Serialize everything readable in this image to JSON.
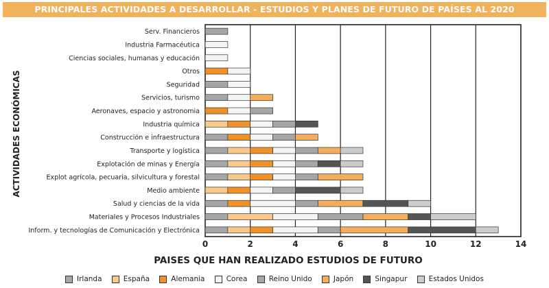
{
  "title": "PRINCIPALES ACTIVIDADES A DESARROLLAR - ESTUDIOS Y PLANES DE FUTURO DE PAÍSES AL 2020",
  "chart_data": {
    "type": "bar",
    "orientation": "horizontal",
    "stacked": true,
    "title": "PRINCIPALES ACTIVIDADES A DESARROLLAR - ESTUDIOS Y PLANES DE FUTURO DE PAÍSES AL 2020",
    "xlabel": "PAISES QUE HAN REALIZADO ESTUDIOS DE FUTURO",
    "ylabel": "ACTIVIDADES ECONÓMICAS",
    "xlim": [
      0,
      14
    ],
    "xticks": [
      "0",
      "2",
      "4",
      "6",
      "8",
      "10",
      "12",
      "14"
    ],
    "grid": "vertical",
    "legend_position": "bottom",
    "categories": [
      "Serv. Financieros",
      "Industria Farmacéutica",
      "Ciencias sociales, humanas y educación",
      "Otros",
      "Seguridad",
      "Servicios, turismo",
      "Aeronaves, espacio y astronomia",
      "Industria química",
      "Construcción e infraestructura",
      "Transporte y logística",
      "Explotación de minas y Energía",
      "Explot agrícola, pecuaria, silvicultura y forestal",
      "Medio ambiente",
      "Salud y ciencias de la vida",
      "Materiales y Procesos Industriales",
      "Inform. y tecnologías de Comunicación y Electrónica"
    ],
    "series": [
      {
        "name": "Irlanda",
        "color": "#a6a6a6",
        "values": [
          1,
          0,
          0,
          0,
          1,
          1,
          0,
          0,
          1,
          1,
          1,
          1,
          0,
          1,
          1,
          1
        ]
      },
      {
        "name": "España",
        "color": "#f8c98a",
        "values": [
          0,
          0,
          0,
          0,
          0,
          0,
          0,
          1,
          0,
          1,
          1,
          1,
          1,
          0,
          2,
          1
        ]
      },
      {
        "name": "Alemania",
        "color": "#f0912a",
        "values": [
          0,
          0,
          0,
          1,
          0,
          0,
          1,
          1,
          1,
          1,
          1,
          1,
          1,
          1,
          0,
          1
        ]
      },
      {
        "name": "Corea",
        "color": "#f4f4f4",
        "values": [
          0,
          1,
          1,
          1,
          1,
          1,
          1,
          1,
          1,
          1,
          1,
          1,
          1,
          2,
          2,
          2
        ]
      },
      {
        "name": "Reino Unido",
        "color": "#a6a6a6",
        "values": [
          0,
          0,
          0,
          0,
          0,
          0,
          1,
          1,
          1,
          1,
          1,
          1,
          1,
          1,
          2,
          1
        ]
      },
      {
        "name": "Japón",
        "color": "#f5ac5c",
        "values": [
          0,
          0,
          0,
          0,
          0,
          1,
          0,
          0,
          1,
          1,
          0,
          2,
          0,
          2,
          2,
          3
        ]
      },
      {
        "name": "Singapur",
        "color": "#555555",
        "values": [
          0,
          0,
          0,
          0,
          0,
          0,
          0,
          1,
          0,
          0,
          1,
          0,
          2,
          2,
          1,
          3
        ]
      },
      {
        "name": "Estados Unidos",
        "color": "#cccccc",
        "values": [
          0,
          0,
          0,
          0,
          0,
          0,
          0,
          0,
          0,
          1,
          1,
          0,
          1,
          1,
          2,
          1
        ]
      }
    ]
  }
}
